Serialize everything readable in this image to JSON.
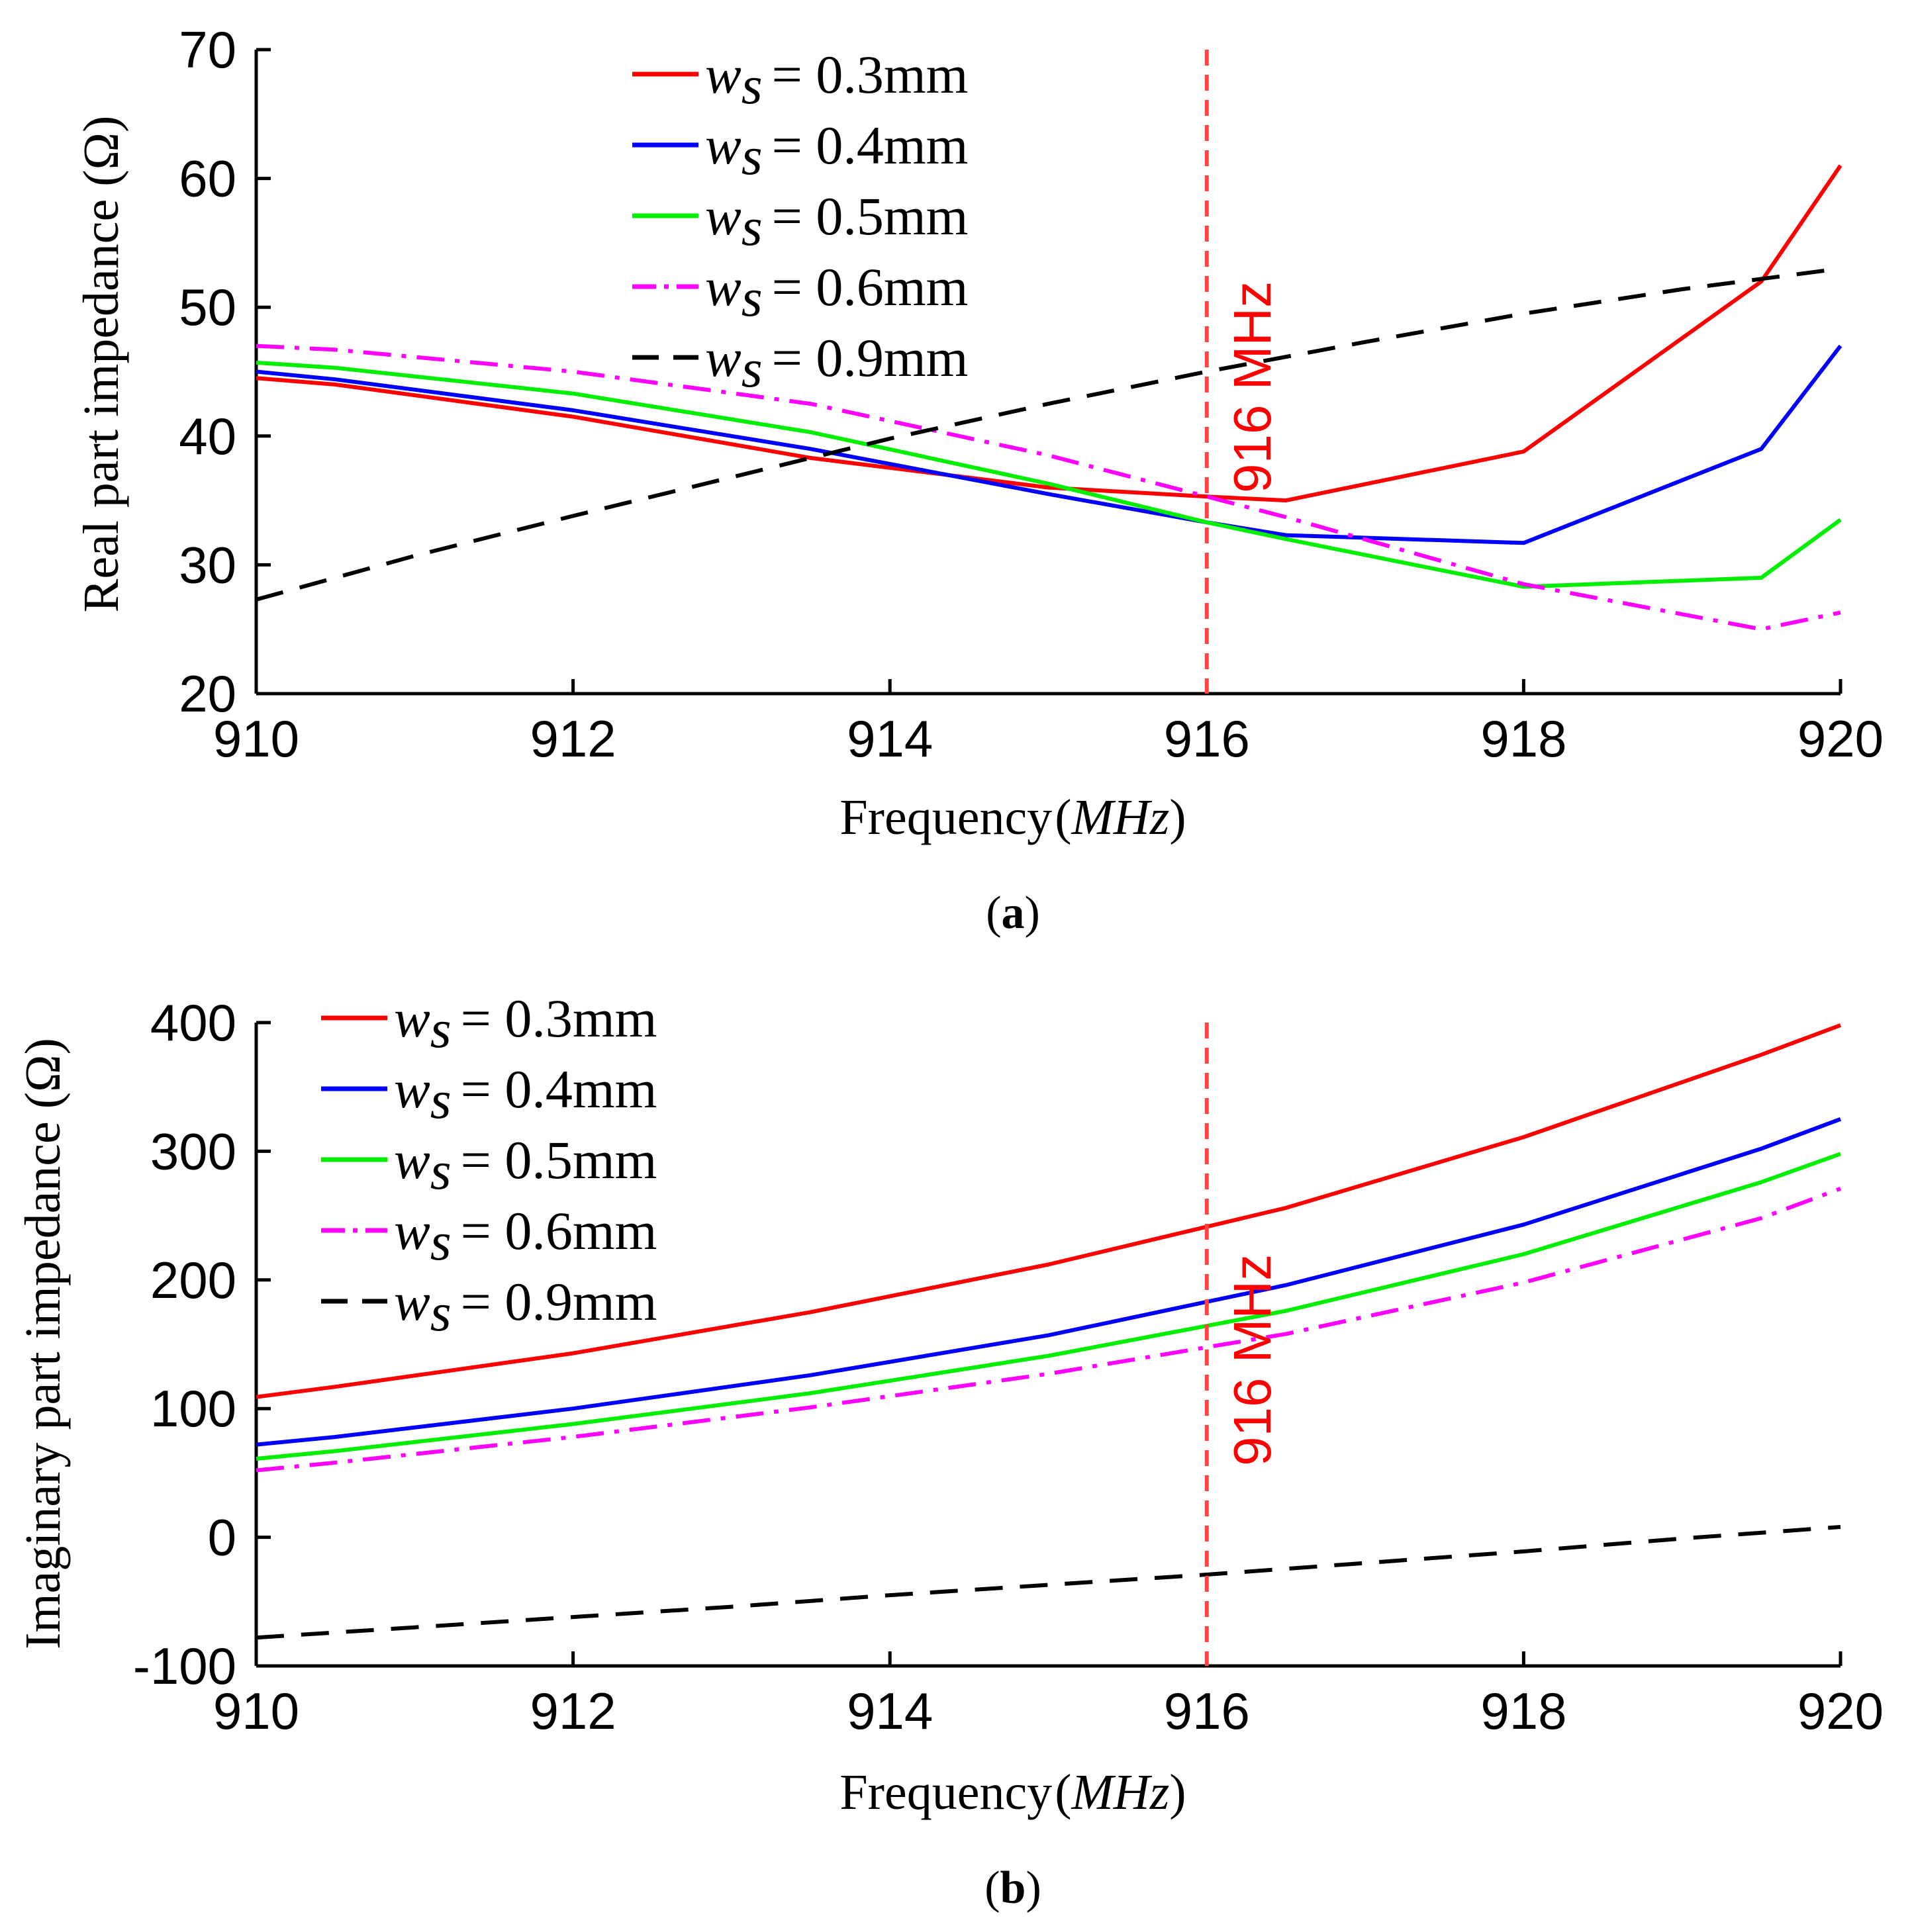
{
  "chart_data": [
    {
      "id": "a",
      "type": "line",
      "caption": "a",
      "xlabel": "Frequency",
      "xlabel_unit": "MHz",
      "ylabel": "Real part impedance (Ω)",
      "xlim": [
        910,
        920
      ],
      "ylim": [
        20,
        70
      ],
      "xticks": [
        "910",
        "912",
        "914",
        "916",
        "918",
        "920"
      ],
      "yticks": [
        "20",
        "30",
        "40",
        "50",
        "60",
        "70"
      ],
      "marker": {
        "x": 916,
        "label": "916 MHz",
        "color": "#ff4444"
      },
      "legend_position": "top-center",
      "series": [
        {
          "name": "w_s = 0.3mm",
          "sub": "s",
          "value": "= 0.3mm",
          "color": "#ff0000",
          "dash": "solid",
          "x": [
            910,
            910.5,
            912,
            913.5,
            915,
            916,
            916.5,
            918,
            919.5,
            920
          ],
          "y": [
            44.5,
            44.0,
            41.5,
            38.3,
            36.0,
            35.3,
            35.0,
            38.8,
            52.0,
            61.0
          ]
        },
        {
          "name": "w_s = 0.4mm",
          "sub": "s",
          "value": "= 0.4mm",
          "color": "#0000ff",
          "dash": "solid",
          "x": [
            910,
            910.5,
            912,
            913.5,
            915,
            916,
            916.5,
            918,
            919.5,
            920
          ],
          "y": [
            45.0,
            44.4,
            42.0,
            39.0,
            35.5,
            33.3,
            32.3,
            31.7,
            39.0,
            47.0
          ]
        },
        {
          "name": "w_s = 0.5mm",
          "sub": "s",
          "value": "= 0.5mm",
          "color": "#00ee00",
          "dash": "solid",
          "x": [
            910,
            910.5,
            912,
            913.5,
            915,
            916,
            916.5,
            918,
            919.5,
            920
          ],
          "y": [
            45.7,
            45.3,
            43.3,
            40.3,
            36.3,
            33.3,
            32.0,
            28.3,
            29.0,
            33.5
          ]
        },
        {
          "name": "w_s = 0.6mm",
          "sub": "s",
          "value": "= 0.6mm",
          "color": "#ff00ff",
          "dash": "dashdot",
          "x": [
            910,
            910.5,
            912,
            913.5,
            915,
            916,
            916.5,
            918,
            919.5,
            920
          ],
          "y": [
            47.0,
            46.7,
            45.0,
            42.5,
            38.5,
            35.3,
            33.7,
            28.5,
            25.0,
            26.3
          ]
        },
        {
          "name": "w_s = 0.9mm",
          "sub": "s",
          "value": "= 0.9mm",
          "color": "#000000",
          "dash": "dash",
          "x": [
            910,
            911,
            912,
            913,
            914,
            915,
            916,
            917,
            918,
            919,
            920
          ],
          "y": [
            27.3,
            30.7,
            33.8,
            36.8,
            39.8,
            42.5,
            45.0,
            47.3,
            49.5,
            51.4,
            53.0
          ]
        }
      ]
    },
    {
      "id": "b",
      "type": "line",
      "caption": "b",
      "xlabel": "Frequency",
      "xlabel_unit": "MHz",
      "ylabel": "Imaginary part impedance (Ω)",
      "xlim": [
        910,
        920
      ],
      "ylim": [
        -100,
        400
      ],
      "xticks": [
        "910",
        "912",
        "914",
        "916",
        "918",
        "920"
      ],
      "yticks": [
        "-100",
        "0",
        "100",
        "200",
        "300",
        "400"
      ],
      "marker": {
        "x": 916,
        "label": "916 MHz",
        "color": "#ff4444"
      },
      "legend_position": "top-left",
      "series": [
        {
          "name": "w_s = 0.3mm",
          "sub": "s",
          "value": "= 0.3mm",
          "color": "#ff0000",
          "dash": "solid",
          "x": [
            910,
            910.5,
            912,
            913.5,
            915,
            916.5,
            918,
            919.5,
            920
          ],
          "y": [
            109,
            117,
            143,
            175,
            212,
            256,
            311,
            375,
            398
          ]
        },
        {
          "name": "w_s = 0.4mm",
          "sub": "s",
          "value": "= 0.4mm",
          "color": "#0000ff",
          "dash": "solid",
          "x": [
            910,
            910.5,
            912,
            913.5,
            915,
            916.5,
            918,
            919.5,
            920
          ],
          "y": [
            72,
            78,
            100,
            126,
            157,
            196,
            243,
            302,
            325
          ]
        },
        {
          "name": "w_s = 0.5mm",
          "sub": "s",
          "value": "= 0.5mm",
          "color": "#00ee00",
          "dash": "solid",
          "x": [
            910,
            910.5,
            912,
            913.5,
            915,
            916.5,
            918,
            919.5,
            920
          ],
          "y": [
            61,
            67,
            88,
            112,
            141,
            176,
            220,
            276,
            298
          ]
        },
        {
          "name": "w_s = 0.6mm",
          "sub": "s",
          "value": "= 0.6mm",
          "color": "#ff00ff",
          "dash": "dashdot",
          "x": [
            910,
            910.5,
            912,
            913.5,
            915,
            916.5,
            918,
            919.5,
            920
          ],
          "y": [
            52,
            58,
            78,
            101,
            127,
            158,
            198,
            248,
            271
          ]
        },
        {
          "name": "w_s = 0.9mm",
          "sub": "s",
          "value": "= 0.9mm",
          "color": "#000000",
          "dash": "dash",
          "x": [
            910,
            911,
            912,
            913,
            914,
            915,
            916,
            917,
            918,
            919,
            920
          ],
          "y": [
            -78,
            -70,
            -62,
            -54,
            -45,
            -37,
            -29,
            -20,
            -11,
            -1,
            8
          ]
        }
      ]
    }
  ]
}
